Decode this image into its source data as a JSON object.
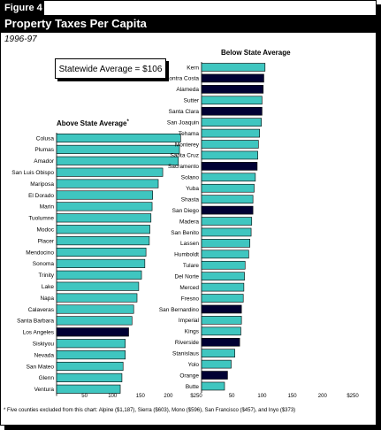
{
  "figure": {
    "label": "Figure 4",
    "title": "Property Taxes Per Capita",
    "subtitle": "1996-97",
    "statewide_average": "Statewide Average = $106",
    "footnote": "* Five counties excluded from this chart:  Alpine ($1,187), Sierra ($603), Mono ($596), San Francisco ($457), and Inyo ($373)"
  },
  "colors": {
    "bar_fill": "#3fc6c0",
    "highlight_fill": "#000033",
    "bar_stroke": "#000000"
  },
  "chart_data": [
    {
      "type": "bar",
      "orientation": "horizontal",
      "title": "Above State Average",
      "title_marker": "*",
      "xlim": [
        0,
        250
      ],
      "xticks": [
        50,
        100,
        150,
        200,
        250
      ],
      "categories": [
        "Colusa",
        "Plumas",
        "Amador",
        "San Luis Obispo",
        "Mariposa",
        "El Dorado",
        "Marin",
        "Tuolumne",
        "Modoc",
        "Placer",
        "Mendocino",
        "Sonoma",
        "Trinity",
        "Lake",
        "Napa",
        "Calaveras",
        "Santa Barbara",
        "Los Angeles",
        "Siskiyou",
        "Nevada",
        "San Mateo",
        "Glenn",
        "Ventura"
      ],
      "values": [
        222,
        220,
        218,
        190,
        182,
        172,
        171,
        169,
        167,
        166,
        160,
        158,
        152,
        147,
        144,
        138,
        135,
        129,
        123,
        123,
        119,
        117,
        114
      ],
      "highlight": [
        "Los Angeles"
      ]
    },
    {
      "type": "bar",
      "orientation": "horizontal",
      "title": "Below State Average",
      "xlim": [
        0,
        250
      ],
      "xticks": [
        50,
        100,
        150,
        200,
        250
      ],
      "categories": [
        "Kern",
        "Contra Costa",
        "Alameda",
        "Sutter",
        "Santa Clara",
        "San Joaquin",
        "Tehama",
        "Monterey",
        "Santa Cruz",
        "Sacramento",
        "Solano",
        "Yuba",
        "Shasta",
        "San Diego",
        "Madera",
        "San Benito",
        "Lassen",
        "Humboldt",
        "Tulare",
        "Del Norte",
        "Merced",
        "Fresno",
        "San Bernardino",
        "Imperial",
        "Kings",
        "Riverside",
        "Stanislaus",
        "Yolo",
        "Orange",
        "Butte"
      ],
      "values": [
        105,
        103,
        102,
        100,
        100,
        99,
        96,
        94,
        93,
        92,
        89,
        87,
        85,
        85,
        83,
        82,
        80,
        78,
        72,
        71,
        70,
        69,
        66,
        66,
        65,
        63,
        55,
        49,
        43,
        38
      ],
      "highlight": [
        "Contra Costa",
        "Alameda",
        "Santa Clara",
        "Sacramento",
        "San Diego",
        "San Bernardino",
        "Riverside",
        "Orange"
      ]
    }
  ]
}
